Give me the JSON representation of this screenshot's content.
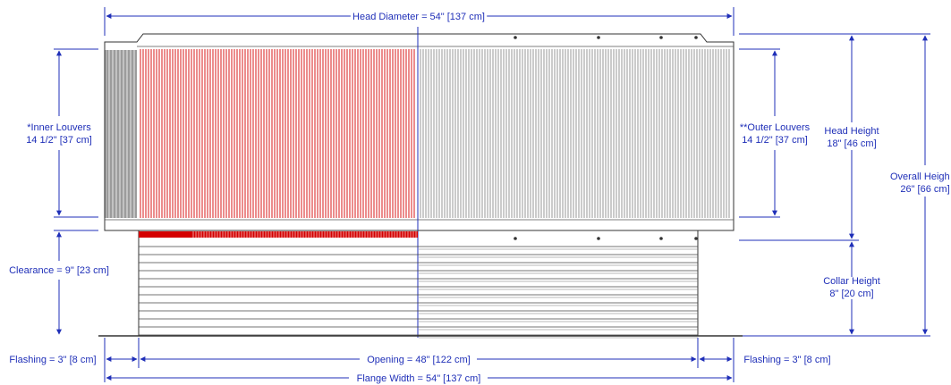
{
  "colors": {
    "dimension": "#1f2fb8",
    "outline": "#333333",
    "inner_louvers": "#d40000",
    "outer_louvers": "#6b6b6b",
    "collar_lines": "#444444"
  },
  "labels": {
    "head_diameter": "Head Diameter = 54\" [137 cm]",
    "inner_louvers_line1": "*Inner Louvers",
    "inner_louvers_line2": "14 1/2\" [37 cm]",
    "outer_louvers_line1": "**Outer Louvers",
    "outer_louvers_line2": "14 1/2\" [37 cm]",
    "head_height_line1": "Head Height",
    "head_height_line2": "18\" [46 cm]",
    "overall_height_line1": "Overall Heigh",
    "overall_height_line2": "26\" [66 cm]",
    "clearance": "Clearance = 9\" [23 cm]",
    "collar_height_line1": "Collar Height",
    "collar_height_line2": "8\" [20 cm]",
    "flashing_left": "Flashing = 3\" [8 cm]",
    "opening": "Opening = 48\" [122 cm]",
    "flashing_right": "Flashing = 3\" [8 cm]",
    "flange_width": "Flange Width = 54\" [137 cm]"
  }
}
